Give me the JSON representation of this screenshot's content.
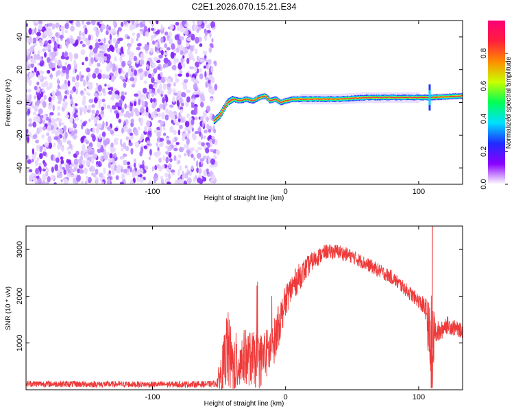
{
  "title": "C2E1.2026.070.15.21.E34",
  "chart_data": [
    {
      "type": "heatmap",
      "xlabel": "Height of straight line (km)",
      "ylabel": "Frequency (Hz)",
      "xlim": [
        -195,
        133
      ],
      "ylim": [
        -50,
        50
      ],
      "xticks": [
        -100,
        0,
        100
      ],
      "xtick_labels": [
        "-100",
        "0",
        "100"
      ],
      "yticks": [
        -40,
        -20,
        0,
        20,
        40
      ],
      "ytick_labels": [
        "-40",
        "-20",
        "0",
        "20",
        "40"
      ],
      "noise_region_x": [
        -195,
        -52
      ],
      "ridge": [
        [
          -54,
          -11
        ],
        [
          -50,
          -8
        ],
        [
          -47,
          -4
        ],
        [
          -44,
          0
        ],
        [
          -40,
          2
        ],
        [
          -35,
          1
        ],
        [
          -30,
          2
        ],
        [
          -25,
          1
        ],
        [
          -20,
          3
        ],
        [
          -16,
          4
        ],
        [
          -12,
          1
        ],
        [
          -8,
          2
        ],
        [
          -4,
          0
        ],
        [
          0,
          1
        ],
        [
          5,
          2
        ],
        [
          20,
          2
        ],
        [
          40,
          2
        ],
        [
          60,
          3
        ],
        [
          80,
          3
        ],
        [
          100,
          3
        ],
        [
          108,
          3
        ],
        [
          133,
          4
        ]
      ],
      "colorbar": {
        "label": "Normalized spectral amplitude",
        "range": [
          0,
          1
        ],
        "ticks": [
          0.0,
          0.2,
          0.4,
          0.6,
          0.8
        ],
        "tick_labels": [
          "0.0",
          "0.2",
          "0.4",
          "0.6",
          "0.8"
        ],
        "colors": [
          "#ffffff",
          "#8a00ff",
          "#1f2bff",
          "#00e0ff",
          "#00ff55",
          "#c8ff00",
          "#ff8c00",
          "#ff1e3c",
          "#ff0078"
        ]
      }
    },
    {
      "type": "line",
      "xlabel": "Height of straight line (km)",
      "ylabel": "SNR (10 * v/v)",
      "xlim": [
        -195,
        133
      ],
      "ylim": [
        0,
        3500
      ],
      "xticks": [
        -100,
        0,
        100
      ],
      "xtick_labels": [
        "-100",
        "0",
        "100"
      ],
      "yticks": [
        1000,
        2000,
        3000
      ],
      "ytick_labels": [
        "1000",
        "2000",
        "3000"
      ],
      "color": "#ee3a3a",
      "envelope": {
        "x": [
          -195,
          -150,
          -100,
          -60,
          -52,
          -46,
          -44,
          -40,
          -30,
          -20,
          -10,
          -5,
          0,
          5,
          10,
          20,
          30,
          40,
          50,
          60,
          70,
          80,
          90,
          100,
          106,
          108,
          110,
          112,
          116,
          120,
          133
        ],
        "mean": [
          130,
          120,
          115,
          120,
          130,
          500,
          900,
          500,
          700,
          600,
          900,
          1400,
          1900,
          2200,
          2400,
          2750,
          2950,
          2950,
          2850,
          2700,
          2550,
          2400,
          2150,
          1900,
          1700,
          1000,
          600,
          1300,
          1200,
          1400,
          1250
        ],
        "amp": [
          70,
          70,
          65,
          70,
          70,
          700,
          900,
          700,
          600,
          600,
          500,
          450,
          350,
          320,
          300,
          200,
          160,
          160,
          150,
          150,
          150,
          150,
          150,
          160,
          250,
          900,
          1500,
          300,
          200,
          200,
          150
        ]
      }
    }
  ]
}
